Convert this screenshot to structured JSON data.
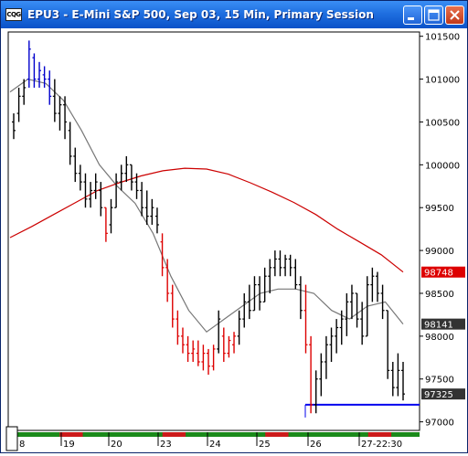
{
  "window": {
    "title": "EPU3 - E-Mini S&P 500, Sep 03, 15 Min, Primary Session",
    "icon_label": "CQG",
    "buttons": [
      "minimize",
      "maximize",
      "close"
    ]
  },
  "chart_data": {
    "type": "bar",
    "chart_kind": "OHLC price bars, 15 minute",
    "ylim": [
      96900,
      101550
    ],
    "y_ticks": [
      "101500",
      "101000",
      "100500",
      "100000",
      "99500",
      "99000",
      "98500",
      "98000",
      "97500",
      "97000"
    ],
    "x_labels": [
      "8",
      "19",
      "20",
      "23",
      "24",
      "25",
      "26",
      "27-22:30"
    ],
    "price_labels": {
      "red_ma": "98748",
      "gray_ma": "98141",
      "last": "97325"
    },
    "bars": [
      {
        "h": 100600,
        "l": 100300,
        "o": 100500,
        "c": 100400,
        "col": "black"
      },
      {
        "h": 100900,
        "l": 100500,
        "o": 100600,
        "c": 100800,
        "col": "black"
      },
      {
        "h": 101000,
        "l": 100700,
        "o": 100800,
        "c": 100900,
        "col": "black"
      },
      {
        "h": 101450,
        "l": 100900,
        "o": 101000,
        "c": 101350,
        "col": "blue"
      },
      {
        "h": 101300,
        "l": 100900,
        "o": 101250,
        "c": 101000,
        "col": "blue"
      },
      {
        "h": 101200,
        "l": 100900,
        "o": 101000,
        "c": 101100,
        "col": "blue"
      },
      {
        "h": 101150,
        "l": 100900,
        "o": 101050,
        "c": 101000,
        "col": "blue"
      },
      {
        "h": 101100,
        "l": 100700,
        "o": 101000,
        "c": 100800,
        "col": "blue"
      },
      {
        "h": 101000,
        "l": 100500,
        "o": 100800,
        "c": 100600,
        "col": "black"
      },
      {
        "h": 100800,
        "l": 100400,
        "o": 100600,
        "c": 100700,
        "col": "black"
      },
      {
        "h": 100800,
        "l": 100300,
        "o": 100700,
        "c": 100500,
        "col": "black"
      },
      {
        "h": 100500,
        "l": 100000,
        "o": 100400,
        "c": 100100,
        "col": "black"
      },
      {
        "h": 100200,
        "l": 99800,
        "o": 100100,
        "c": 99900,
        "col": "black"
      },
      {
        "h": 100000,
        "l": 99700,
        "o": 99900,
        "c": 99800,
        "col": "black"
      },
      {
        "h": 99900,
        "l": 99500,
        "o": 99800,
        "c": 99600,
        "col": "black"
      },
      {
        "h": 99800,
        "l": 99500,
        "o": 99600,
        "c": 99700,
        "col": "black"
      },
      {
        "h": 99900,
        "l": 99600,
        "o": 99700,
        "c": 99800,
        "col": "black"
      },
      {
        "h": 99800,
        "l": 99400,
        "o": 99700,
        "c": 99500,
        "col": "black"
      },
      {
        "h": 99500,
        "l": 99100,
        "o": 99500,
        "c": 99200,
        "col": "red"
      },
      {
        "h": 99600,
        "l": 99200,
        "o": 99300,
        "c": 99500,
        "col": "black"
      },
      {
        "h": 99900,
        "l": 99500,
        "o": 99500,
        "c": 99800,
        "col": "black"
      },
      {
        "h": 100000,
        "l": 99700,
        "o": 99800,
        "c": 99900,
        "col": "black"
      },
      {
        "h": 100100,
        "l": 99800,
        "o": 99900,
        "c": 100000,
        "col": "black"
      },
      {
        "h": 100000,
        "l": 99700,
        "o": 100000,
        "c": 99800,
        "col": "black"
      },
      {
        "h": 99900,
        "l": 99600,
        "o": 99800,
        "c": 99700,
        "col": "black"
      },
      {
        "h": 99800,
        "l": 99400,
        "o": 99700,
        "c": 99500,
        "col": "black"
      },
      {
        "h": 99700,
        "l": 99300,
        "o": 99500,
        "c": 99400,
        "col": "black"
      },
      {
        "h": 99600,
        "l": 99300,
        "o": 99400,
        "c": 99500,
        "col": "black"
      },
      {
        "h": 99500,
        "l": 99200,
        "o": 99400,
        "c": 99300,
        "col": "black"
      },
      {
        "h": 99200,
        "l": 98700,
        "o": 99100,
        "c": 98800,
        "col": "red"
      },
      {
        "h": 98900,
        "l": 98400,
        "o": 98800,
        "c": 98500,
        "col": "red"
      },
      {
        "h": 98600,
        "l": 98100,
        "o": 98500,
        "c": 98200,
        "col": "red"
      },
      {
        "h": 98300,
        "l": 97900,
        "o": 98200,
        "c": 98000,
        "col": "red"
      },
      {
        "h": 98100,
        "l": 97800,
        "o": 98000,
        "c": 97900,
        "col": "red"
      },
      {
        "h": 98000,
        "l": 97700,
        "o": 97900,
        "c": 97800,
        "col": "red"
      },
      {
        "h": 97950,
        "l": 97700,
        "o": 97800,
        "c": 97850,
        "col": "red"
      },
      {
        "h": 97950,
        "l": 97650,
        "o": 97800,
        "c": 97700,
        "col": "red"
      },
      {
        "h": 97900,
        "l": 97600,
        "o": 97700,
        "c": 97800,
        "col": "red"
      },
      {
        "h": 97850,
        "l": 97550,
        "o": 97800,
        "c": 97650,
        "col": "red"
      },
      {
        "h": 97900,
        "l": 97600,
        "o": 97650,
        "c": 97850,
        "col": "red"
      },
      {
        "h": 98300,
        "l": 97800,
        "o": 97850,
        "c": 98200,
        "col": "black"
      },
      {
        "h": 98100,
        "l": 97700,
        "o": 98000,
        "c": 97800,
        "col": "red"
      },
      {
        "h": 98000,
        "l": 97750,
        "o": 97800,
        "c": 97950,
        "col": "red"
      },
      {
        "h": 98050,
        "l": 97800,
        "o": 97900,
        "c": 98000,
        "col": "red"
      },
      {
        "h": 98300,
        "l": 97900,
        "o": 98000,
        "c": 98200,
        "col": "black"
      },
      {
        "h": 98500,
        "l": 98100,
        "o": 98200,
        "c": 98400,
        "col": "black"
      },
      {
        "h": 98600,
        "l": 98200,
        "o": 98400,
        "c": 98300,
        "col": "black"
      },
      {
        "h": 98700,
        "l": 98300,
        "o": 98300,
        "c": 98600,
        "col": "black"
      },
      {
        "h": 98700,
        "l": 98300,
        "o": 98600,
        "c": 98400,
        "col": "black"
      },
      {
        "h": 98800,
        "l": 98400,
        "o": 98400,
        "c": 98700,
        "col": "black"
      },
      {
        "h": 98900,
        "l": 98500,
        "o": 98700,
        "c": 98800,
        "col": "black"
      },
      {
        "h": 99000,
        "l": 98700,
        "o": 98800,
        "c": 98900,
        "col": "black"
      },
      {
        "h": 99000,
        "l": 98700,
        "o": 98900,
        "c": 98800,
        "col": "black"
      },
      {
        "h": 98950,
        "l": 98700,
        "o": 98800,
        "c": 98900,
        "col": "black"
      },
      {
        "h": 98950,
        "l": 98700,
        "o": 98900,
        "c": 98800,
        "col": "black"
      },
      {
        "h": 98900,
        "l": 98550,
        "o": 98800,
        "c": 98600,
        "col": "black"
      },
      {
        "h": 98700,
        "l": 98200,
        "o": 98600,
        "c": 98300,
        "col": "black"
      },
      {
        "h": 98600,
        "l": 97800,
        "o": 98300,
        "c": 97900,
        "col": "red"
      },
      {
        "h": 98000,
        "l": 97100,
        "o": 97900,
        "c": 97200,
        "col": "red"
      },
      {
        "h": 97600,
        "l": 97100,
        "o": 97200,
        "c": 97500,
        "col": "black"
      },
      {
        "h": 97800,
        "l": 97300,
        "o": 97500,
        "c": 97700,
        "col": "black"
      },
      {
        "h": 98000,
        "l": 97500,
        "o": 97700,
        "c": 97900,
        "col": "black"
      },
      {
        "h": 98100,
        "l": 97700,
        "o": 97900,
        "c": 98000,
        "col": "black"
      },
      {
        "h": 98200,
        "l": 97800,
        "o": 98000,
        "c": 98100,
        "col": "black"
      },
      {
        "h": 98300,
        "l": 97900,
        "o": 98100,
        "c": 98200,
        "col": "black"
      },
      {
        "h": 98500,
        "l": 98000,
        "o": 98200,
        "c": 98400,
        "col": "black"
      },
      {
        "h": 98600,
        "l": 98200,
        "o": 98400,
        "c": 98500,
        "col": "black"
      },
      {
        "h": 98500,
        "l": 98100,
        "o": 98500,
        "c": 98200,
        "col": "black"
      },
      {
        "h": 98400,
        "l": 97900,
        "o": 98200,
        "c": 98000,
        "col": "black"
      },
      {
        "h": 98700,
        "l": 98000,
        "o": 98000,
        "c": 98600,
        "col": "black"
      },
      {
        "h": 98800,
        "l": 98400,
        "o": 98600,
        "c": 98700,
        "col": "black"
      },
      {
        "h": 98750,
        "l": 98400,
        "o": 98700,
        "c": 98500,
        "col": "black"
      },
      {
        "h": 98600,
        "l": 98200,
        "o": 98500,
        "c": 98300,
        "col": "black"
      },
      {
        "h": 98300,
        "l": 97500,
        "o": 98300,
        "c": 97600,
        "col": "black"
      },
      {
        "h": 97700,
        "l": 97300,
        "o": 97600,
        "c": 97400,
        "col": "black"
      },
      {
        "h": 97800,
        "l": 97300,
        "o": 97400,
        "c": 97600,
        "col": "black"
      },
      {
        "h": 97700,
        "l": 97250,
        "o": 97600,
        "c": 97325,
        "col": "black"
      }
    ],
    "red_ma": [
      99150,
      99280,
      99420,
      99560,
      99700,
      99790,
      99870,
      99930,
      99960,
      99950,
      99890,
      99790,
      99680,
      99560,
      99420,
      99250,
      99100,
      98950,
      98748
    ],
    "gray_ma": [
      100850,
      101000,
      100950,
      100750,
      100400,
      100000,
      99750,
      99550,
      99200,
      98700,
      98300,
      98050,
      98200,
      98350,
      98500,
      98550,
      98550,
      98500,
      98300,
      98200,
      98350,
      98400,
      98141
    ],
    "blue_line_level": 97200
  }
}
